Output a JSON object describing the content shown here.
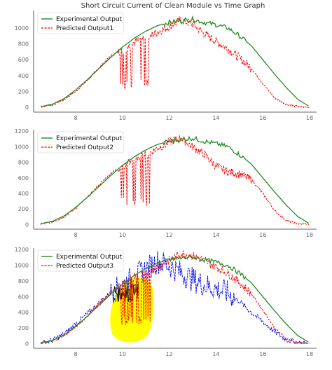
{
  "title": "Short Circuit Current of Clean Module vs Time Graph",
  "colors": {
    "experimental": "#228b22",
    "predicted": "#ff0000",
    "blue_overlay": "#0000ee",
    "highlight": "#ffff00"
  },
  "chart_data": [
    {
      "type": "line",
      "xlim": [
        6.2,
        18.3
      ],
      "ylim": [
        -60,
        1220
      ],
      "xticks": [
        "8",
        "10",
        "12",
        "14",
        "16",
        "18"
      ],
      "yticks": [
        "0",
        "200",
        "400",
        "600",
        "800",
        "1000"
      ],
      "grid": false,
      "legend_position": "top-left",
      "series": [
        {
          "name": "Experimental Output",
          "style": "solid",
          "x": [
            6.5,
            7.0,
            7.5,
            8.0,
            8.5,
            9.0,
            9.5,
            10.0,
            10.5,
            11.0,
            11.5,
            12.0,
            12.5,
            13.0,
            13.5,
            14.0,
            14.5,
            15.0,
            15.5,
            16.0,
            16.5,
            17.0,
            17.5,
            18.0
          ],
          "y": [
            10,
            40,
            110,
            220,
            350,
            490,
            630,
            760,
            870,
            960,
            1030,
            1070,
            1090,
            1110,
            1070,
            1040,
            1000,
            900,
            780,
            600,
            420,
            250,
            100,
            10
          ]
        },
        {
          "name": "Predicted Output1",
          "style": "dashed",
          "x": [
            6.5,
            7.0,
            7.5,
            8.0,
            8.5,
            9.0,
            9.5,
            10.0,
            10.5,
            11.0,
            11.5,
            12.0,
            12.5,
            13.0,
            13.5,
            14.0,
            14.5,
            15.0,
            15.5,
            16.0,
            16.5,
            17.0,
            17.5,
            18.0
          ],
          "y": [
            5,
            30,
            100,
            200,
            340,
            500,
            650,
            720,
            820,
            880,
            950,
            1020,
            1100,
            1050,
            930,
            830,
            740,
            620,
            500,
            300,
            120,
            40,
            10,
            0
          ]
        }
      ]
    },
    {
      "type": "line",
      "xlim": [
        6.2,
        18.3
      ],
      "ylim": [
        -60,
        1220
      ],
      "xticks": [
        "8",
        "10",
        "12",
        "14",
        "16",
        "18"
      ],
      "yticks": [
        "0",
        "200",
        "400",
        "600",
        "800",
        "1000",
        "1200"
      ],
      "grid": false,
      "legend_position": "top-left",
      "series": [
        {
          "name": "Experimental Output",
          "style": "solid",
          "x": [
            6.5,
            7.0,
            7.5,
            8.0,
            8.5,
            9.0,
            9.5,
            10.0,
            10.5,
            11.0,
            11.5,
            12.0,
            12.5,
            13.0,
            13.5,
            14.0,
            14.5,
            15.0,
            15.5,
            16.0,
            16.5,
            17.0,
            17.5,
            18.0
          ],
          "y": [
            10,
            40,
            110,
            220,
            350,
            490,
            630,
            760,
            870,
            960,
            1030,
            1070,
            1090,
            1110,
            1070,
            1040,
            1000,
            900,
            780,
            600,
            420,
            250,
            100,
            10
          ]
        },
        {
          "name": "Predicted Output2",
          "style": "dashed",
          "x": [
            6.5,
            7.0,
            7.5,
            8.0,
            8.5,
            9.0,
            9.5,
            10.0,
            10.5,
            11.0,
            11.5,
            12.0,
            12.5,
            13.0,
            13.5,
            14.0,
            14.5,
            15.0,
            15.5,
            16.0,
            16.5,
            17.0,
            17.5,
            18.0
          ],
          "y": [
            5,
            30,
            100,
            210,
            350,
            510,
            660,
            750,
            850,
            900,
            980,
            1060,
            1110,
            1000,
            900,
            750,
            680,
            650,
            580,
            400,
            180,
            50,
            10,
            0
          ]
        }
      ]
    },
    {
      "type": "line",
      "xlim": [
        6.2,
        18.3
      ],
      "ylim": [
        -60,
        1220
      ],
      "xticks": [
        "8",
        "10",
        "12",
        "14",
        "16",
        "18"
      ],
      "yticks": [
        "0",
        "200",
        "400",
        "600",
        "800",
        "1000",
        "1200"
      ],
      "grid": false,
      "legend_position": "top-left",
      "series": [
        {
          "name": "Experimental Output",
          "style": "solid",
          "x": [
            6.5,
            7.0,
            7.5,
            8.0,
            8.5,
            9.0,
            9.5,
            10.0,
            10.5,
            11.0,
            11.5,
            12.0,
            12.5,
            13.0,
            13.5,
            14.0,
            14.5,
            15.0,
            15.5,
            16.0,
            16.5,
            17.0,
            17.5,
            18.0
          ],
          "y": [
            10,
            40,
            110,
            220,
            350,
            490,
            630,
            760,
            870,
            960,
            1030,
            1070,
            1090,
            1110,
            1070,
            1040,
            1000,
            900,
            780,
            600,
            420,
            250,
            100,
            10
          ]
        },
        {
          "name": "Predicted Output3",
          "style": "dashed",
          "x": [
            6.5,
            7.0,
            7.5,
            8.0,
            8.5,
            9.0,
            9.5,
            10.0,
            10.5,
            11.0,
            11.5,
            12.0,
            12.5,
            13.0,
            13.5,
            14.0,
            14.5,
            15.0,
            15.5,
            16.0,
            16.5,
            17.0,
            17.5,
            18.0
          ],
          "y": [
            5,
            30,
            100,
            210,
            350,
            510,
            660,
            750,
            850,
            900,
            980,
            1060,
            1150,
            1120,
            1060,
            980,
            900,
            780,
            640,
            430,
            200,
            60,
            10,
            0
          ]
        },
        {
          "style": "dashed",
          "x": [
            6.5,
            7.0,
            7.5,
            8.0,
            8.5,
            9.0,
            9.5,
            10.0,
            10.5,
            11.0,
            11.5,
            12.0,
            12.5,
            13.0,
            13.5,
            14.0,
            14.5,
            15.0,
            15.5,
            16.0,
            16.5,
            17.0,
            17.5,
            18.0
          ],
          "y": [
            5,
            40,
            120,
            250,
            380,
            520,
            650,
            750,
            850,
            950,
            1050,
            1000,
            900,
            820,
            750,
            700,
            650,
            540,
            400,
            280,
            150,
            50,
            10,
            0
          ]
        }
      ]
    }
  ]
}
